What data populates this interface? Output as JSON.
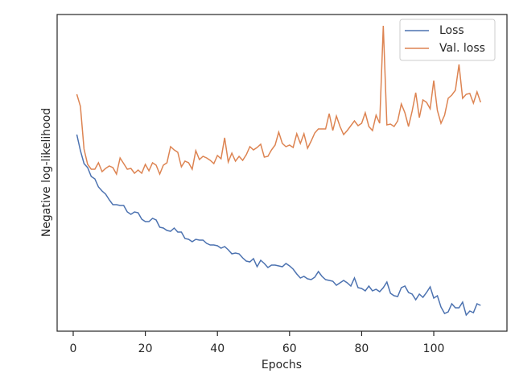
{
  "chart_data": {
    "type": "line",
    "x_label": "Epochs",
    "y_label": "Negative log-likelihood",
    "x": [
      1,
      2,
      3,
      4,
      5,
      6,
      7,
      8,
      9,
      10,
      11,
      12,
      13,
      14,
      15,
      16,
      17,
      18,
      19,
      20,
      21,
      22,
      23,
      24,
      25,
      26,
      27,
      28,
      29,
      30,
      31,
      32,
      33,
      34,
      35,
      36,
      37,
      38,
      39,
      40,
      41,
      42,
      43,
      44,
      45,
      46,
      47,
      48,
      49,
      50,
      51,
      52,
      53,
      54,
      55,
      56,
      57,
      58,
      59,
      60,
      61,
      62,
      63,
      64,
      65,
      66,
      67,
      68,
      69,
      70,
      71,
      72,
      73,
      74,
      75,
      76,
      77,
      78,
      79,
      80,
      81,
      82,
      83,
      84,
      85,
      86,
      87,
      88,
      89,
      90,
      91,
      92,
      93,
      94,
      95,
      96,
      97,
      98,
      99,
      100,
      101,
      102,
      103,
      104,
      105,
      106,
      107,
      108,
      109,
      110,
      111,
      112,
      113
    ],
    "series": [
      {
        "name": "Loss",
        "color": "#4c72b0",
        "values": [
          244,
          224,
          208,
          203,
          192,
          189,
          179,
          174,
          170,
          163,
          157,
          157,
          156,
          156,
          148,
          145,
          148,
          147,
          139,
          136,
          136,
          140,
          138,
          129,
          128,
          125,
          124,
          128,
          123,
          123,
          115,
          114,
          111,
          114,
          113,
          113,
          109,
          107,
          107,
          106,
          103,
          105,
          101,
          96,
          97,
          96,
          91,
          87,
          86,
          90,
          80,
          88,
          84,
          79,
          82,
          82,
          81,
          80,
          84,
          81,
          77,
          71,
          66,
          68,
          65,
          64,
          67,
          74,
          68,
          64,
          63,
          62,
          57,
          60,
          63,
          60,
          56,
          66,
          54,
          53,
          50,
          56,
          50,
          52,
          49,
          54,
          61,
          47,
          44,
          43,
          54,
          56,
          48,
          46,
          39,
          46,
          42,
          48,
          55,
          41,
          44,
          30,
          22,
          24,
          34,
          29,
          29,
          36,
          20,
          25,
          23,
          34,
          32
        ]
      },
      {
        "name": "Val. loss",
        "color": "#dd8452",
        "values": [
          294,
          279,
          226,
          207,
          201,
          201,
          209,
          198,
          202,
          205,
          203,
          195,
          215,
          208,
          201,
          202,
          196,
          200,
          196,
          207,
          199,
          209,
          206,
          195,
          206,
          209,
          229,
          225,
          222,
          204,
          211,
          209,
          201,
          224,
          213,
          217,
          215,
          212,
          208,
          218,
          214,
          240,
          210,
          221,
          211,
          217,
          212,
          219,
          229,
          225,
          228,
          232,
          216,
          217,
          225,
          231,
          247,
          233,
          229,
          231,
          228,
          245,
          233,
          245,
          227,
          236,
          246,
          251,
          251,
          251,
          270,
          249,
          267,
          254,
          244,
          249,
          255,
          261,
          255,
          258,
          271,
          254,
          249,
          268,
          258,
          379,
          256,
          257,
          254,
          261,
          282,
          271,
          254,
          273,
          296,
          265,
          287,
          284,
          276,
          311,
          274,
          258,
          268,
          289,
          293,
          299,
          331,
          289,
          294,
          295,
          283,
          297,
          284
        ]
      }
    ],
    "xlim": [
      -4.46,
      120.3
    ],
    "xticks": [
      0,
      20,
      40,
      60,
      80,
      100
    ],
    "ylim": [
      0,
      393
    ],
    "legend": "upper right"
  }
}
